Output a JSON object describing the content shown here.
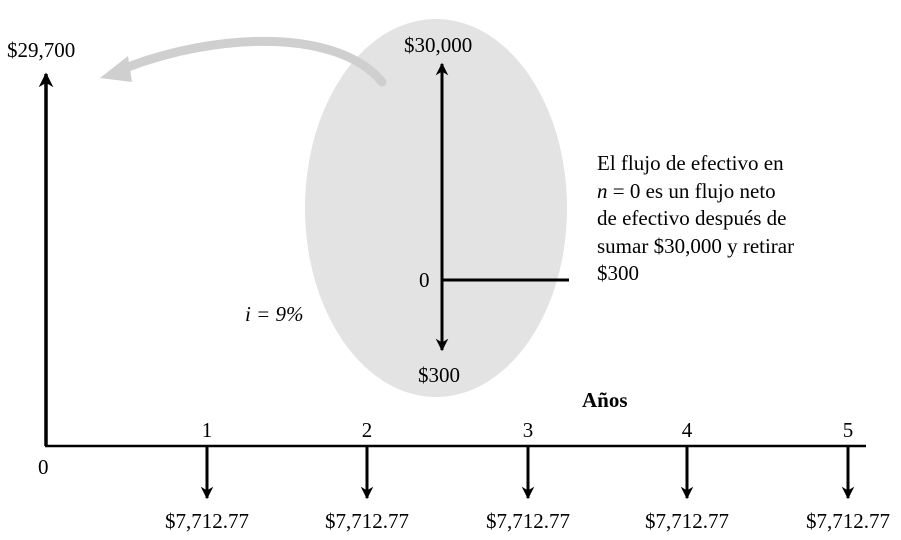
{
  "top_left_amount": "$29,700",
  "inset": {
    "top_amount": "$30,000",
    "zero_label": "0",
    "bottom_amount": "$300"
  },
  "interest_label": "i = 9%",
  "note_lines": [
    "El flujo de efectivo en",
    "n = 0 es un flujo neto",
    "de efectivo después de",
    "sumar $30,000 y retirar",
    "$300"
  ],
  "axis": {
    "title": "Años",
    "origin_label": "0",
    "periods": [
      "1",
      "2",
      "3",
      "4",
      "5"
    ]
  },
  "payments": [
    "$7,712.77",
    "$7,712.77",
    "$7,712.77",
    "$7,712.77",
    "$7,712.77"
  ]
}
